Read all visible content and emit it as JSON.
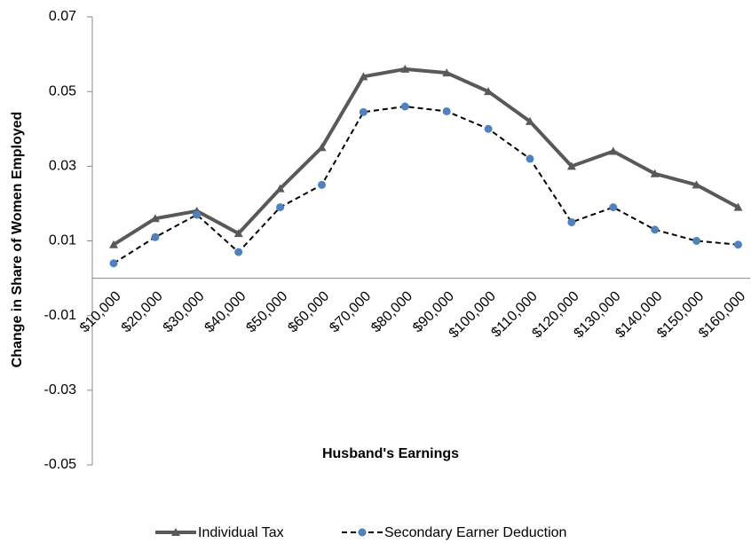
{
  "chart_data": {
    "type": "line",
    "x_label": "Husband's Earnings",
    "y_label": "Change in Share of Women Employed",
    "categories": [
      "$10,000",
      "$20,000",
      "$30,000",
      "$40,000",
      "$50,000",
      "$60,000",
      "$70,000",
      "$80,000",
      "$90,000",
      "$100,000",
      "$110,000",
      "$120,000",
      "$130,000",
      "$140,000",
      "$150,000",
      "$160,000"
    ],
    "series": [
      {
        "name": "Individual Tax",
        "color": "#595959",
        "dash": false,
        "marker": "triangle",
        "values": [
          0.009,
          0.016,
          0.018,
          0.012,
          0.024,
          0.035,
          0.054,
          0.056,
          0.055,
          0.05,
          0.042,
          0.03,
          0.034,
          0.028,
          0.025,
          0.019
        ]
      },
      {
        "name": "Secondary Earner Deduction",
        "color": "#000000",
        "marker_color": "#4f81bd",
        "dash": true,
        "marker": "circle",
        "values": [
          0.004,
          0.011,
          0.017,
          0.007,
          0.019,
          0.025,
          0.0445,
          0.046,
          0.0447,
          0.04,
          0.032,
          0.015,
          0.019,
          0.013,
          0.01,
          0.009
        ]
      }
    ],
    "ylim": [
      -0.05,
      0.07
    ],
    "yticks": [
      0.07,
      0.05,
      0.03,
      0.01,
      -0.01,
      -0.03,
      -0.05
    ],
    "grid": false,
    "legend": "bottom"
  }
}
